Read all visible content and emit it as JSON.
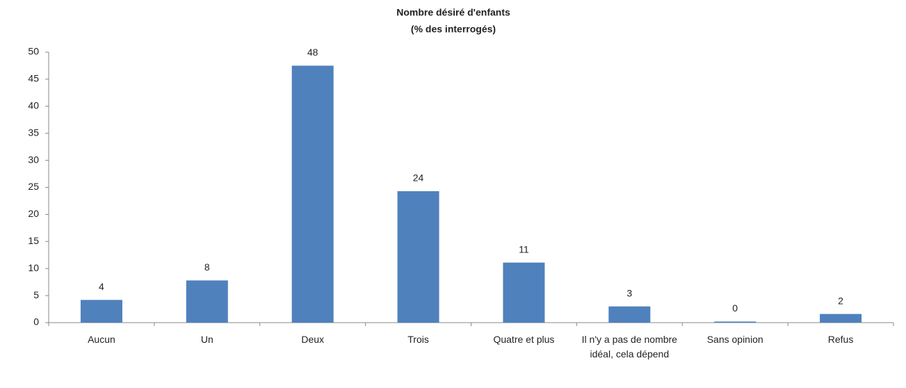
{
  "chart_data": {
    "type": "bar",
    "title": "Nombre désiré d'enfants",
    "subtitle": "(% des interrogés)",
    "categories": [
      "Aucun",
      "Un",
      "Deux",
      "Trois",
      "Quatre et plus",
      "Il n'y a pas de nombre idéal, cela dépend",
      "Sans opinion",
      "Refus"
    ],
    "values": [
      4.2,
      7.8,
      47.5,
      24.3,
      11.1,
      3,
      0.2,
      1.6
    ],
    "value_labels": [
      "4",
      "8",
      "48",
      "24",
      "11",
      "3",
      "0",
      "2"
    ],
    "color": "#4f81bd",
    "ylim": [
      0,
      50
    ],
    "yticks": [
      0,
      5,
      10,
      15,
      20,
      25,
      30,
      35,
      40,
      45,
      50
    ],
    "grid": false
  }
}
